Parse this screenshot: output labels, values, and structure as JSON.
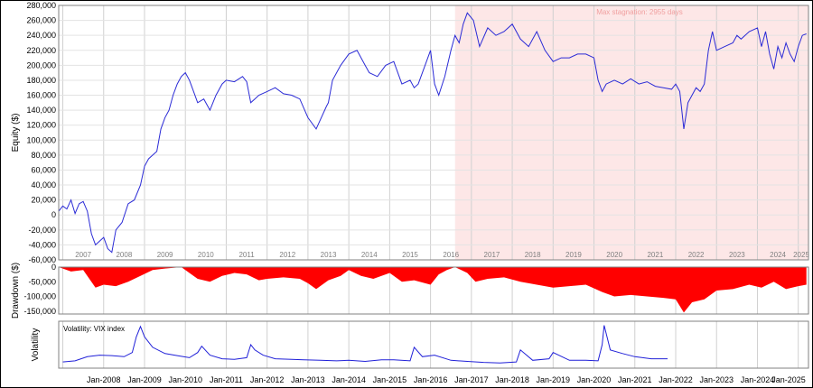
{
  "chart_data": [
    {
      "type": "line",
      "panel": "equity",
      "ylabel": "Equity ($)",
      "ylim": [
        -60000,
        280000
      ],
      "yticks": [
        -60000,
        -40000,
        -20000,
        0,
        20000,
        40000,
        60000,
        80000,
        100000,
        120000,
        140000,
        160000,
        180000,
        200000,
        220000,
        240000,
        260000,
        280000
      ],
      "ytick_labels": [
        "-60,000",
        "-40,000",
        "-20,000",
        "0",
        "20,000",
        "40,000",
        "60,000",
        "80,000",
        "100,000",
        "120,000",
        "140,000",
        "160,000",
        "180,000",
        "200,000",
        "220,000",
        "240,000",
        "260,000",
        "280,000"
      ],
      "xlim": [
        2006.9,
        2025.25
      ],
      "year_labels": [
        "2007",
        "2008",
        "2009",
        "2010",
        "2011",
        "2012",
        "2013",
        "2014",
        "2015",
        "2016",
        "2017",
        "2018",
        "2019",
        "2020",
        "2021",
        "2022",
        "2023",
        "2024",
        "2025"
      ],
      "grid": true,
      "line_color": "#2b2bd6",
      "annotation": {
        "text": "Max stagnation: 2955 days",
        "shaded_range": [
          2016.6,
          2025.25
        ],
        "shade_color": "#fde7e7",
        "text_color": "#f0a0a0"
      },
      "series": [
        {
          "x": [
            2006.9,
            2007.0,
            2007.1,
            2007.2,
            2007.3,
            2007.4,
            2007.5,
            2007.6,
            2007.7,
            2007.8,
            2007.9,
            2008.0,
            2008.1,
            2008.2,
            2008.3,
            2008.45,
            2008.6,
            2008.75,
            2008.9,
            2009.0,
            2009.1,
            2009.2,
            2009.3,
            2009.4,
            2009.5,
            2009.6,
            2009.7,
            2009.8,
            2009.9,
            2010.0,
            2010.1,
            2010.2,
            2010.3,
            2010.45,
            2010.6,
            2010.75,
            2010.9,
            2011.0,
            2011.2,
            2011.4,
            2011.5,
            2011.6,
            2011.7,
            2011.8,
            2012.0,
            2012.2,
            2012.4,
            2012.6,
            2012.8,
            2013.0,
            2013.2,
            2013.45,
            2013.5,
            2013.6,
            2013.8,
            2014.0,
            2014.2,
            2014.4,
            2014.5,
            2014.7,
            2014.9,
            2015.1,
            2015.3,
            2015.5,
            2015.6,
            2015.7,
            2015.9,
            2016.0,
            2016.1,
            2016.2,
            2016.35,
            2016.5,
            2016.6,
            2016.7,
            2016.8,
            2016.9,
            2017.05,
            2017.2,
            2017.4,
            2017.6,
            2017.8,
            2018.0,
            2018.2,
            2018.4,
            2018.6,
            2018.8,
            2019.0,
            2019.2,
            2019.4,
            2019.6,
            2019.8,
            2020.0,
            2020.1,
            2020.2,
            2020.3,
            2020.5,
            2020.7,
            2020.9,
            2021.1,
            2021.3,
            2021.5,
            2021.7,
            2021.9,
            2022.0,
            2022.1,
            2022.2,
            2022.3,
            2022.4,
            2022.5,
            2022.6,
            2022.7,
            2022.8,
            2022.9,
            2023.0,
            2023.2,
            2023.4,
            2023.5,
            2023.6,
            2023.8,
            2024.0,
            2024.1,
            2024.2,
            2024.3,
            2024.4,
            2024.5,
            2024.6,
            2024.7,
            2024.8,
            2024.9,
            2025.0,
            2025.1,
            2025.2
          ],
          "y": [
            5000,
            12000,
            8000,
            20000,
            2000,
            15000,
            18000,
            5000,
            -25000,
            -40000,
            -35000,
            -30000,
            -45000,
            -50000,
            -20000,
            -10000,
            15000,
            20000,
            40000,
            65000,
            75000,
            80000,
            85000,
            115000,
            130000,
            140000,
            160000,
            175000,
            185000,
            190000,
            180000,
            165000,
            150000,
            155000,
            140000,
            160000,
            175000,
            180000,
            178000,
            185000,
            178000,
            150000,
            155000,
            160000,
            165000,
            170000,
            162000,
            160000,
            155000,
            130000,
            115000,
            145000,
            150000,
            180000,
            200000,
            215000,
            220000,
            200000,
            190000,
            185000,
            200000,
            205000,
            175000,
            180000,
            170000,
            175000,
            205000,
            220000,
            175000,
            160000,
            185000,
            220000,
            240000,
            230000,
            255000,
            270000,
            260000,
            225000,
            250000,
            240000,
            245000,
            255000,
            235000,
            225000,
            245000,
            220000,
            205000,
            210000,
            210000,
            215000,
            215000,
            210000,
            180000,
            165000,
            175000,
            180000,
            175000,
            182000,
            175000,
            178000,
            172000,
            170000,
            168000,
            175000,
            165000,
            115000,
            150000,
            160000,
            170000,
            165000,
            175000,
            220000,
            245000,
            220000,
            225000,
            230000,
            240000,
            235000,
            245000,
            250000,
            225000,
            245000,
            215000,
            195000,
            225000,
            210000,
            230000,
            215000,
            205000,
            225000,
            240000,
            242000
          ]
        }
      ]
    },
    {
      "type": "bar",
      "panel": "drawdown",
      "ylabel": "Drawdown ($)",
      "ylim": [
        -160000,
        0
      ],
      "yticks": [
        0,
        -50000,
        -100000,
        -150000
      ],
      "ytick_labels": [
        "0",
        "-50,000",
        "-100,000",
        "-150,000"
      ],
      "color": "#ff0000",
      "series": [
        {
          "x": [
            2006.9,
            2007.2,
            2007.5,
            2007.8,
            2008.0,
            2008.3,
            2008.6,
            2008.9,
            2009.2,
            2009.5,
            2009.9,
            2010.1,
            2010.3,
            2010.6,
            2010.9,
            2011.2,
            2011.5,
            2011.8,
            2012.0,
            2012.4,
            2012.8,
            2013.0,
            2013.2,
            2013.5,
            2013.8,
            2014.0,
            2014.3,
            2014.6,
            2015.0,
            2015.3,
            2015.6,
            2016.0,
            2016.2,
            2016.4,
            2016.6,
            2016.9,
            2017.1,
            2017.4,
            2017.8,
            2018.2,
            2018.6,
            2019.0,
            2019.4,
            2019.8,
            2020.2,
            2020.5,
            2020.9,
            2021.3,
            2021.7,
            2022.0,
            2022.2,
            2022.4,
            2022.7,
            2023.0,
            2023.4,
            2023.8,
            2024.1,
            2024.4,
            2024.7,
            2025.0,
            2025.2
          ],
          "y": [
            0,
            -15000,
            -10000,
            -70000,
            -60000,
            -65000,
            -50000,
            -30000,
            -10000,
            -5000,
            0,
            -20000,
            -40000,
            -50000,
            -30000,
            -20000,
            -25000,
            -45000,
            -40000,
            -35000,
            -40000,
            -55000,
            -75000,
            -45000,
            -30000,
            -10000,
            -30000,
            -40000,
            -20000,
            -50000,
            -45000,
            -60000,
            -25000,
            -10000,
            0,
            -20000,
            -50000,
            -40000,
            -35000,
            -50000,
            -60000,
            -70000,
            -65000,
            -60000,
            -85000,
            -100000,
            -95000,
            -100000,
            -105000,
            -110000,
            -155000,
            -120000,
            -110000,
            -80000,
            -75000,
            -60000,
            -70000,
            -50000,
            -75000,
            -65000,
            -60000
          ]
        }
      ]
    },
    {
      "type": "line",
      "panel": "volatility",
      "ylabel": "Volatility",
      "legend": "Volatility: VIX index",
      "line_color": "#2020d8",
      "x_tick_labels": [
        "Jan-2008",
        "Jan-2009",
        "Jan-2010",
        "Jan-2011",
        "Jan-2012",
        "Jan-2013",
        "Jan-2014",
        "Jan-2015",
        "Jan-2016",
        "Jan-2017",
        "Jan-2018",
        "Jan-2019",
        "Jan-2020",
        "Jan-2021",
        "Jan-2022",
        "Jan-2023",
        "Jan-2024",
        "Jan-2025"
      ],
      "ylim": [
        0,
        90
      ],
      "series": [
        {
          "x": [
            2007.0,
            2007.3,
            2007.6,
            2007.9,
            2008.2,
            2008.5,
            2008.7,
            2008.8,
            2008.9,
            2009.0,
            2009.2,
            2009.5,
            2009.8,
            2010.1,
            2010.3,
            2010.4,
            2010.6,
            2010.9,
            2011.2,
            2011.5,
            2011.6,
            2011.7,
            2011.9,
            2012.2,
            2012.6,
            2012.9,
            2013.3,
            2013.7,
            2014.0,
            2014.4,
            2014.8,
            2015.1,
            2015.5,
            2015.6,
            2015.8,
            2016.1,
            2016.5,
            2016.9,
            2017.3,
            2017.7,
            2018.1,
            2018.2,
            2018.5,
            2018.9,
            2019.0,
            2019.4,
            2019.8,
            2020.1,
            2020.2,
            2020.25,
            2020.4,
            2020.7,
            2021.0,
            2021.4,
            2021.8
          ],
          "y": [
            12,
            14,
            22,
            25,
            24,
            22,
            30,
            60,
            80,
            60,
            40,
            28,
            24,
            20,
            30,
            42,
            25,
            18,
            17,
            20,
            45,
            35,
            25,
            18,
            17,
            16,
            15,
            14,
            15,
            13,
            16,
            16,
            14,
            40,
            22,
            25,
            15,
            13,
            11,
            10,
            12,
            35,
            15,
            18,
            30,
            15,
            15,
            14,
            45,
            82,
            35,
            28,
            22,
            18,
            18
          ]
        }
      ]
    }
  ]
}
